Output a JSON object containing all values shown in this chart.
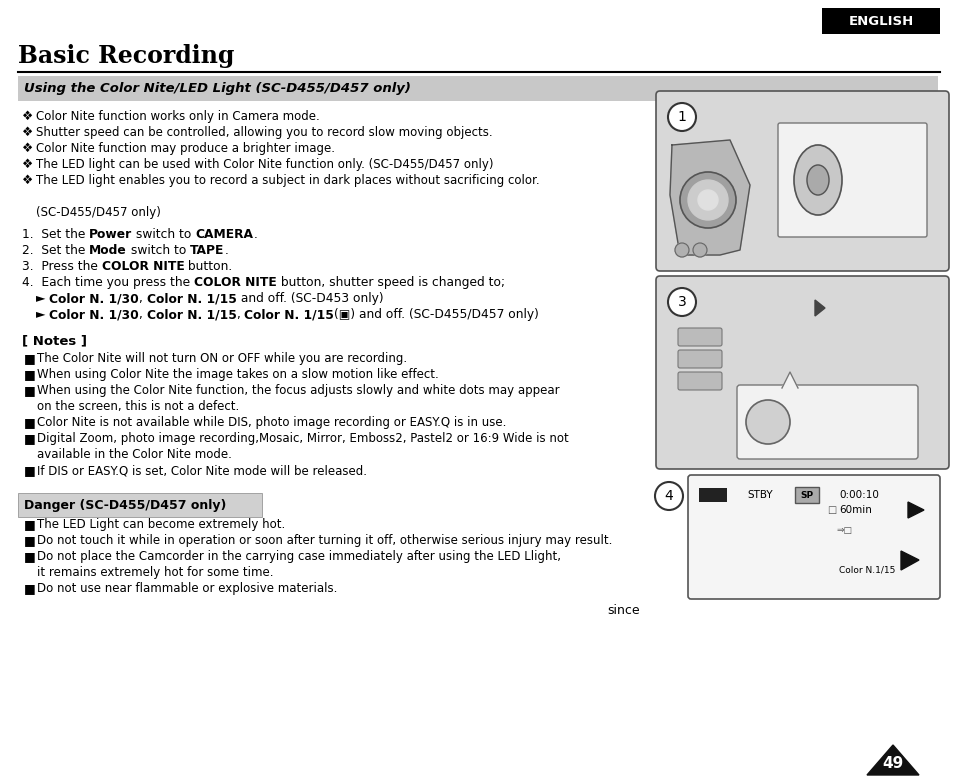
{
  "page_bg": "#ffffff",
  "title": "Basic Recording",
  "section_header": "Using the Color Nite/LED Light (SC-D455/D457 only)",
  "section_header_bg": "#c8c8c8",
  "english_box_text": "ENGLISH",
  "english_box_bg": "#000000",
  "english_box_fg": "#ffffff",
  "bullet_symbol": "❖",
  "note_bullet": "■",
  "since_text": "since",
  "page_number": "49",
  "notes_header": "[ Notes ]",
  "danger_header": "Danger (SC-D455/D457 only)",
  "danger_header_bg": "#d0d0d0"
}
